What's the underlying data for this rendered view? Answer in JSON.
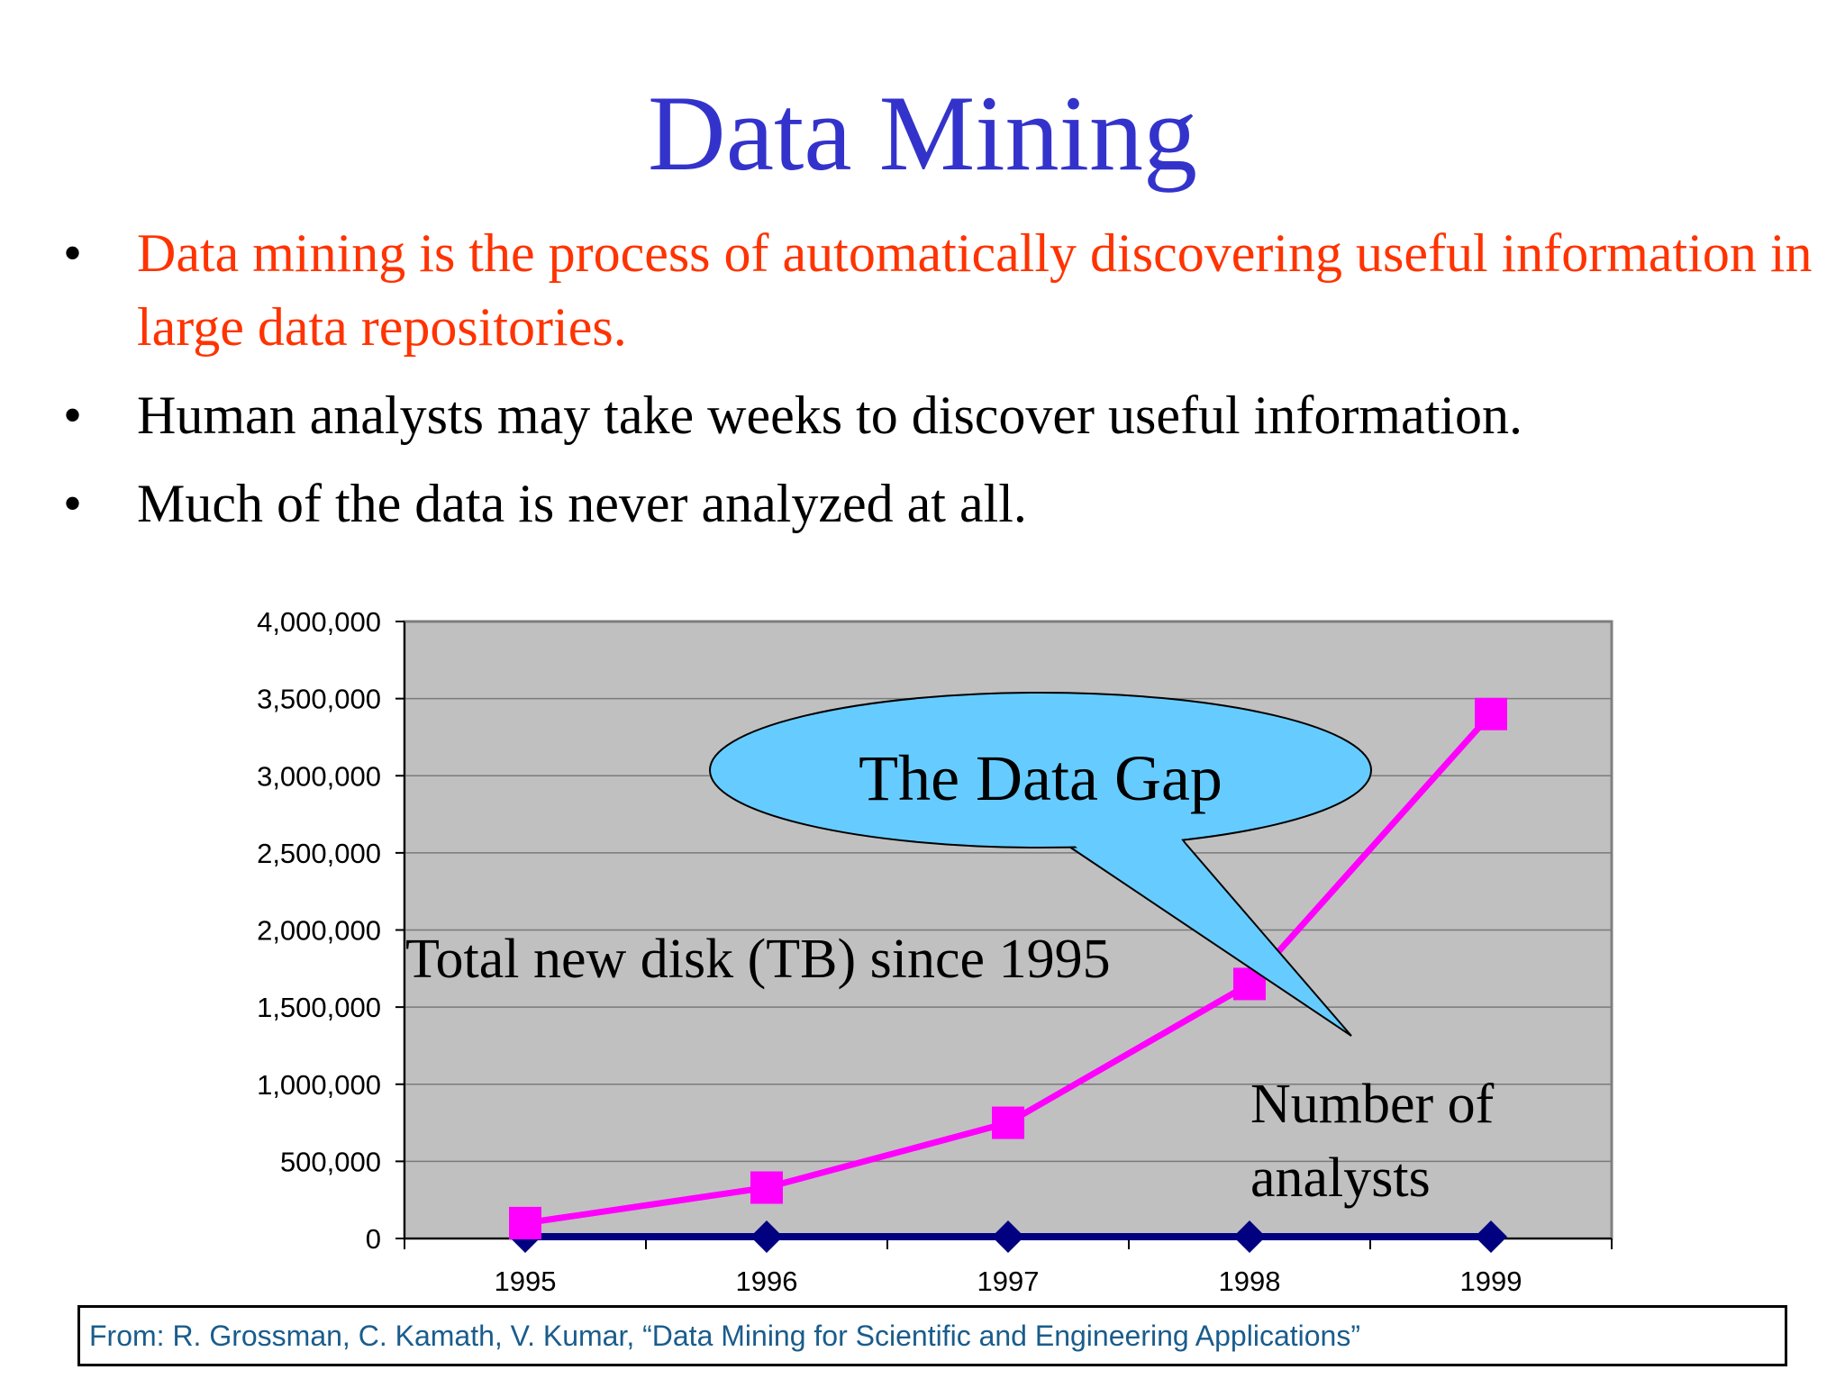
{
  "slide": {
    "title": "Data Mining",
    "bullets": [
      {
        "text": "Data mining is the process of automatically discovering useful information in large data repositories.",
        "highlight": true
      },
      {
        "text": "Human analysts may take weeks to discover useful information.",
        "highlight": false
      },
      {
        "text": "Much of the data is never analyzed at all.",
        "highlight": false
      }
    ],
    "bullet_glyph": "•",
    "source": "From: R. Grossman, C. Kamath, V. Kumar, “Data Mining for Scientific and Engineering Applications”"
  },
  "colors": {
    "title": "#3333cc",
    "highlight_bullet": "#ff3300",
    "plot_background": "#c0c0c0",
    "disk_series": "#ff00ff",
    "analyst_series": "#000080",
    "callout_fill": "#66ccff",
    "source_text": "#1a5c8c"
  },
  "chart_data": {
    "type": "line",
    "categories": [
      "1995",
      "1996",
      "1997",
      "1998",
      "1999"
    ],
    "ylim": [
      0,
      4000000
    ],
    "yticks": [
      0,
      500000,
      1000000,
      1500000,
      2000000,
      2500000,
      3000000,
      3500000,
      4000000
    ],
    "ytick_labels": [
      "0",
      "500,000",
      "1,000,000",
      "1,500,000",
      "2,000,000",
      "2,500,000",
      "3,000,000",
      "3,500,000",
      "4,000,000"
    ],
    "grid": true,
    "legend": "none",
    "series": [
      {
        "name": "Total new disk (TB) since 1995",
        "marker": "square",
        "values": [
          100000,
          330000,
          750000,
          1650000,
          3400000
        ]
      },
      {
        "name": "Number of analysts",
        "marker": "diamond",
        "values": [
          0,
          0,
          0,
          0,
          0
        ]
      }
    ],
    "callout": "The Data Gap",
    "analyst_label_lines": [
      "Number of",
      "analysts"
    ]
  }
}
